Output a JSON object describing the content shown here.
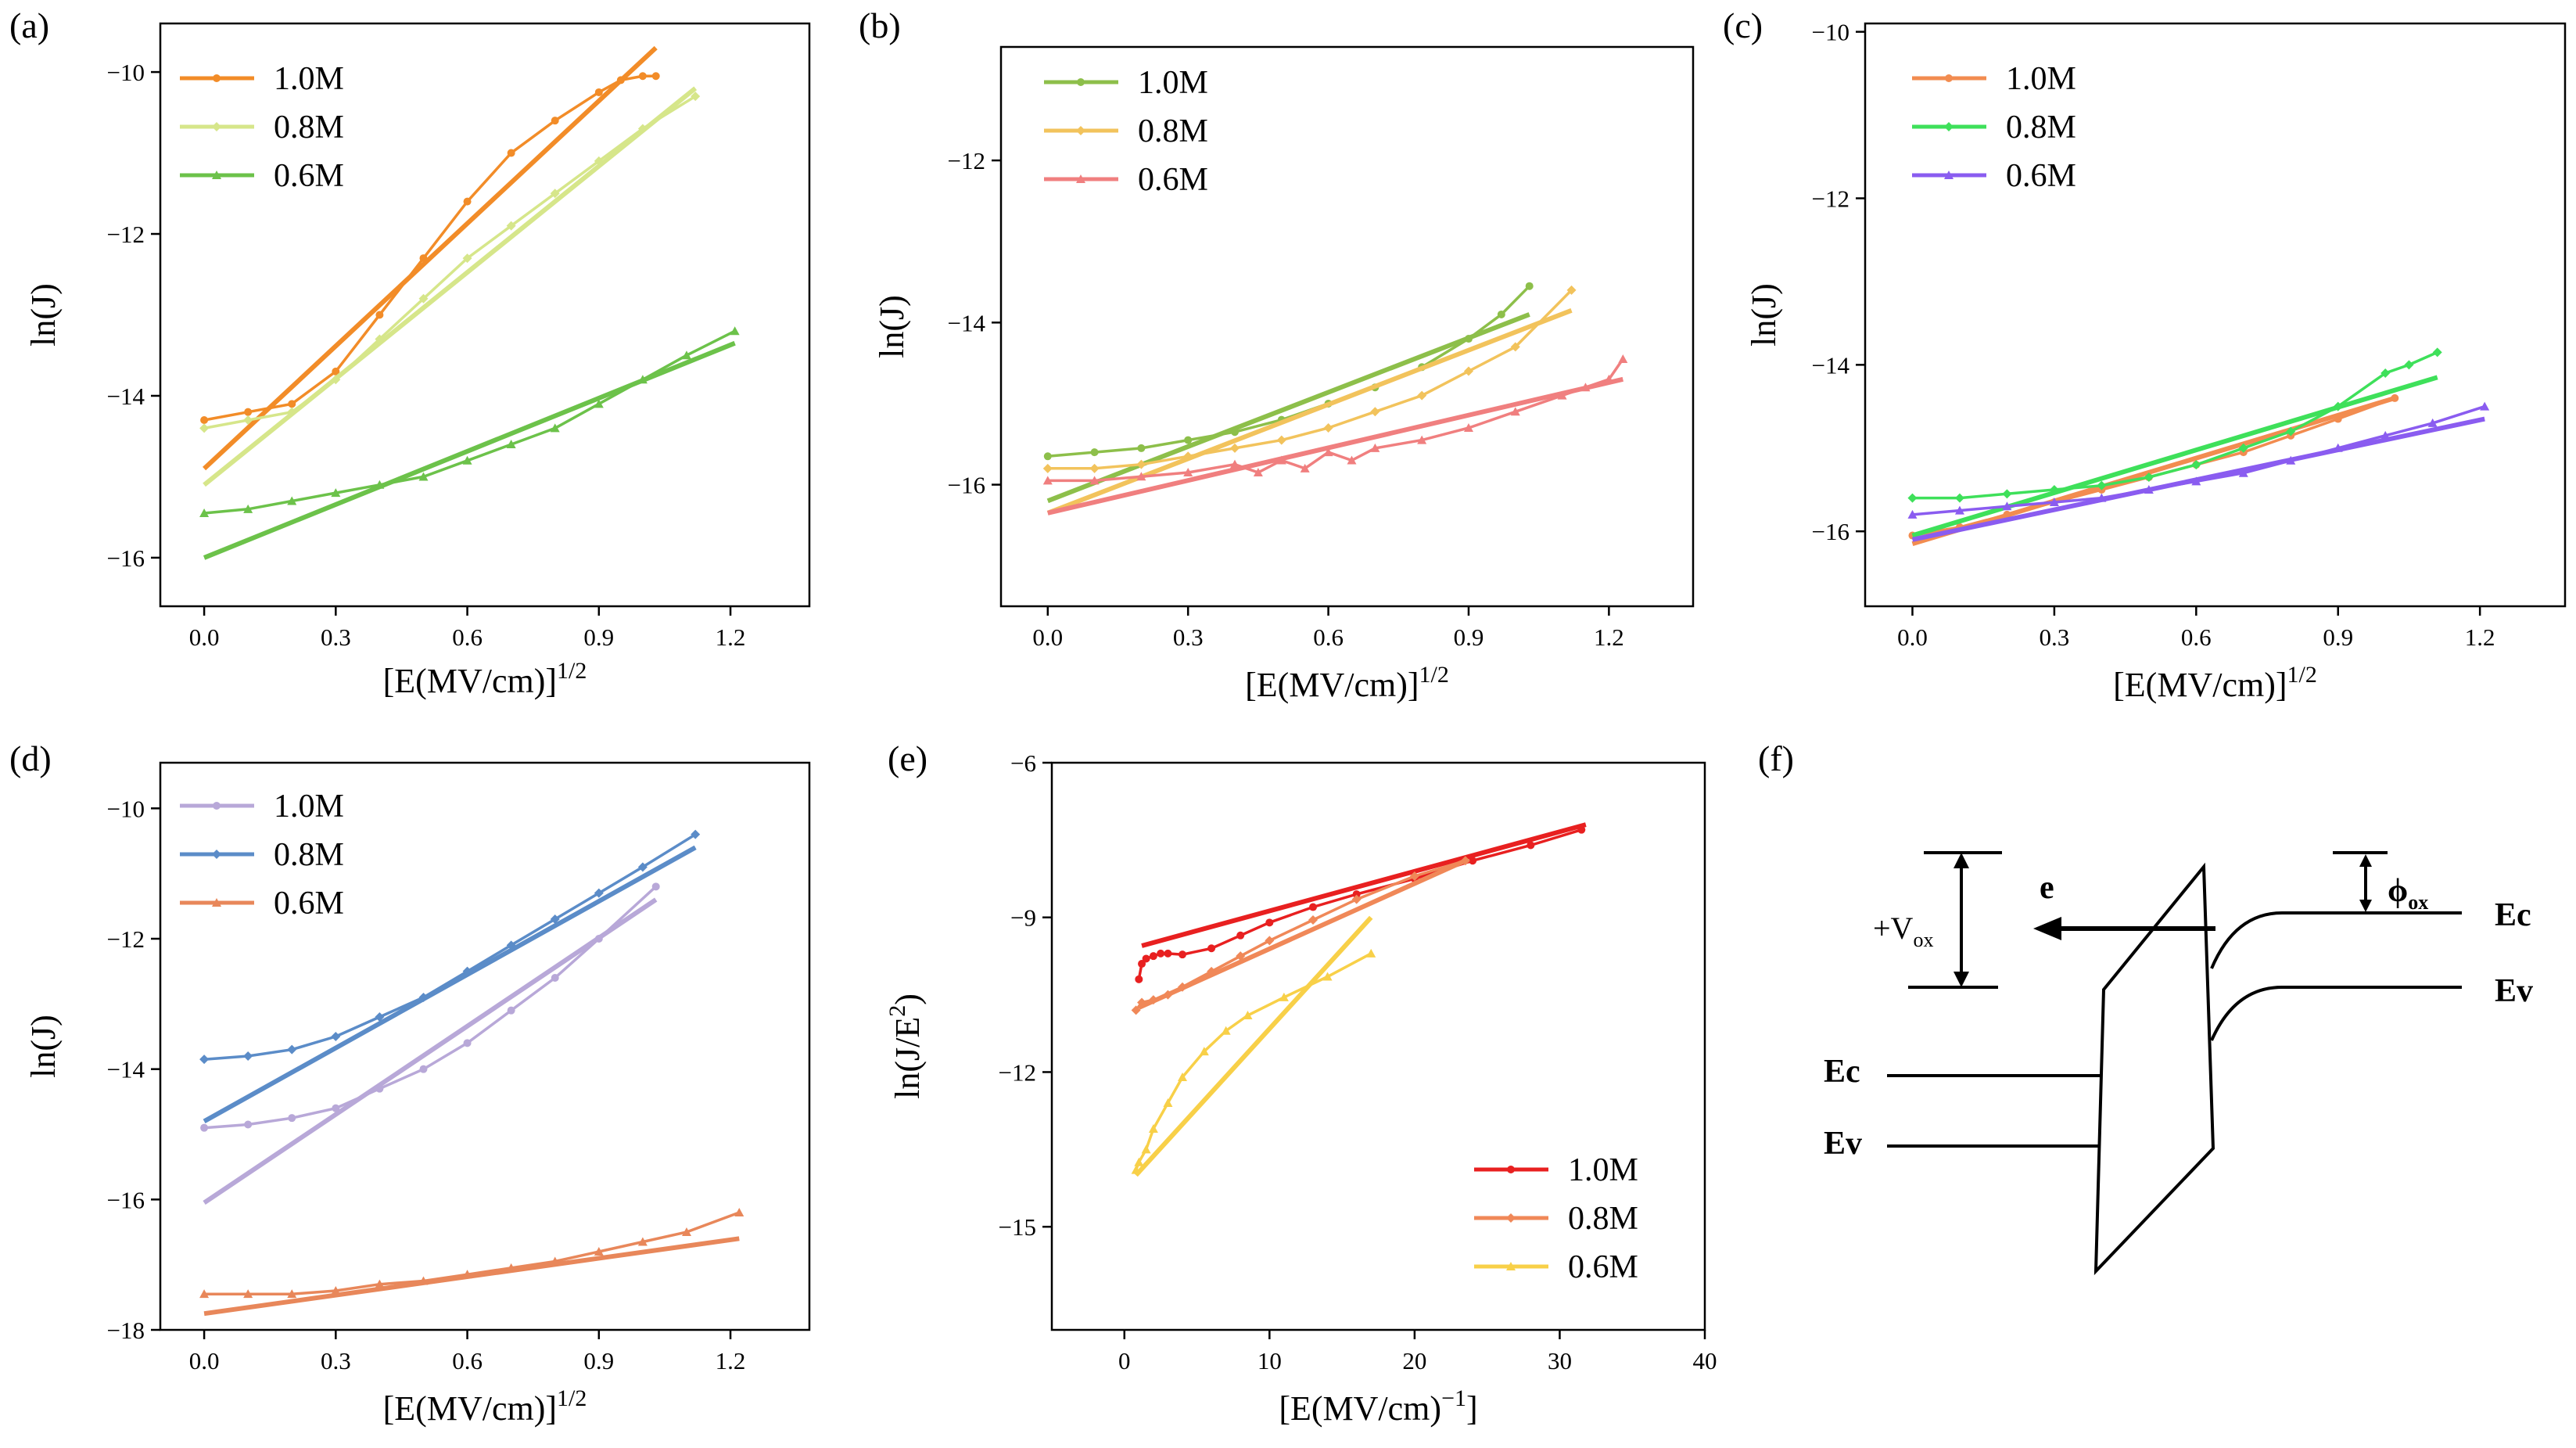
{
  "figure": {
    "panels": [
      "(a)",
      "(b)",
      "(c)",
      "(d)",
      "(e)",
      "(f)"
    ]
  },
  "chart_data": [
    {
      "panel": "(a)",
      "type": "line",
      "xlabel": "[E(MV/cm)]",
      "xlabel_sup": "1/2",
      "ylabel": "ln(J)",
      "xlim": [
        -0.1,
        1.38
      ],
      "ylim": [
        -16.6,
        -9.4
      ],
      "xticks": [
        "0.0",
        "0.3",
        "0.6",
        "0.9",
        "1.2"
      ],
      "xtick_values": [
        0,
        0.3,
        0.6,
        0.9,
        1.2
      ],
      "yticks": [
        "-16",
        "-14",
        "-12",
        "-10"
      ],
      "ytick_values": [
        -16,
        -14,
        -12,
        -10
      ],
      "series": [
        {
          "name": "1.0M",
          "color": "#F28C28",
          "marker": "circle",
          "x": [
            0,
            0.1,
            0.2,
            0.3,
            0.4,
            0.5,
            0.6,
            0.7,
            0.8,
            0.9,
            0.95,
            1.0,
            1.03
          ],
          "y": [
            -14.3,
            -14.2,
            -14.1,
            -13.7,
            -13.0,
            -12.3,
            -11.6,
            -11.0,
            -10.6,
            -10.25,
            -10.1,
            -10.05,
            -10.05
          ],
          "fit": [
            [
              0,
              -14.9
            ],
            [
              1.03,
              -9.7
            ]
          ]
        },
        {
          "name": "0.8M",
          "color": "#D6E68A",
          "marker": "diamond",
          "x": [
            0,
            0.1,
            0.2,
            0.3,
            0.4,
            0.5,
            0.6,
            0.7,
            0.8,
            0.9,
            1.0,
            1.12
          ],
          "y": [
            -14.4,
            -14.3,
            -14.2,
            -13.8,
            -13.3,
            -12.8,
            -12.3,
            -11.9,
            -11.5,
            -11.1,
            -10.7,
            -10.3
          ],
          "fit": [
            [
              0,
              -15.1
            ],
            [
              1.12,
              -10.2
            ]
          ]
        },
        {
          "name": "0.6M",
          "color": "#6CC24A",
          "marker": "triangle",
          "x": [
            0,
            0.1,
            0.2,
            0.3,
            0.4,
            0.5,
            0.6,
            0.7,
            0.8,
            0.9,
            1.0,
            1.1,
            1.21
          ],
          "y": [
            -15.45,
            -15.4,
            -15.3,
            -15.2,
            -15.1,
            -15.0,
            -14.8,
            -14.6,
            -14.4,
            -14.1,
            -13.8,
            -13.5,
            -13.2
          ],
          "fit": [
            [
              0,
              -16.0
            ],
            [
              1.21,
              -13.35
            ]
          ]
        }
      ]
    },
    {
      "panel": "(b)",
      "type": "line",
      "xlabel": "[E(MV/cm)]",
      "xlabel_sup": "1/2",
      "ylabel": "ln(J)",
      "xlim": [
        -0.1,
        1.38
      ],
      "ylim": [
        -17.5,
        -10.6
      ],
      "xticks": [
        "0.0",
        "0.3",
        "0.6",
        "0.9",
        "1.2"
      ],
      "xtick_values": [
        0,
        0.3,
        0.6,
        0.9,
        1.2
      ],
      "yticks": [
        "-16",
        "-14",
        "-12"
      ],
      "ytick_values": [
        -16,
        -14,
        -12
      ],
      "series": [
        {
          "name": "1.0M",
          "color": "#8DBF4A",
          "marker": "circle",
          "x": [
            0,
            0.1,
            0.2,
            0.3,
            0.4,
            0.5,
            0.6,
            0.7,
            0.8,
            0.9,
            0.97,
            1.03
          ],
          "y": [
            -15.65,
            -15.6,
            -15.55,
            -15.45,
            -15.35,
            -15.2,
            -15.0,
            -14.8,
            -14.55,
            -14.2,
            -13.9,
            -13.55
          ],
          "fit": [
            [
              0,
              -16.2
            ],
            [
              1.03,
              -13.9
            ]
          ]
        },
        {
          "name": "0.8M",
          "color": "#F2C35C",
          "marker": "diamond",
          "x": [
            0,
            0.1,
            0.2,
            0.3,
            0.4,
            0.5,
            0.6,
            0.7,
            0.8,
            0.9,
            1.0,
            1.12
          ],
          "y": [
            -15.8,
            -15.8,
            -15.75,
            -15.65,
            -15.55,
            -15.45,
            -15.3,
            -15.1,
            -14.9,
            -14.6,
            -14.3,
            -13.6
          ],
          "fit": [
            [
              0,
              -16.35
            ],
            [
              1.12,
              -13.85
            ]
          ]
        },
        {
          "name": "0.6M",
          "color": "#F07F7F",
          "marker": "triangle",
          "x": [
            0,
            0.1,
            0.2,
            0.3,
            0.4,
            0.45,
            0.5,
            0.55,
            0.6,
            0.65,
            0.7,
            0.8,
            0.9,
            1.0,
            1.1,
            1.15,
            1.2,
            1.23
          ],
          "y": [
            -15.95,
            -15.95,
            -15.9,
            -15.85,
            -15.75,
            -15.85,
            -15.7,
            -15.8,
            -15.6,
            -15.7,
            -15.55,
            -15.45,
            -15.3,
            -15.1,
            -14.9,
            -14.8,
            -14.7,
            -14.45
          ],
          "fit": [
            [
              0,
              -16.35
            ],
            [
              1.23,
              -14.7
            ]
          ]
        }
      ]
    },
    {
      "panel": "(c)",
      "type": "line",
      "xlabel": "[E(MV/cm)]",
      "xlabel_sup": "1/2",
      "ylabel": "ln(J)",
      "xlim": [
        -0.1,
        1.38
      ],
      "ylim": [
        -16.9,
        -9.9
      ],
      "xticks": [
        "0.0",
        "0.3",
        "0.6",
        "0.9",
        "1.2"
      ],
      "xtick_values": [
        0,
        0.3,
        0.6,
        0.9,
        1.2
      ],
      "yticks": [
        "-16",
        "-14",
        "-12",
        "-10"
      ],
      "ytick_values": [
        -16,
        -14,
        -12,
        -10
      ],
      "series": [
        {
          "name": "1.0M",
          "color": "#F28C50",
          "marker": "circle",
          "x": [
            0,
            0.1,
            0.2,
            0.3,
            0.4,
            0.5,
            0.6,
            0.7,
            0.8,
            0.9,
            1.02
          ],
          "y": [
            -16.05,
            -15.95,
            -15.8,
            -15.65,
            -15.5,
            -15.35,
            -15.2,
            -15.05,
            -14.85,
            -14.65,
            -14.4
          ],
          "fit": [
            [
              0,
              -16.15
            ],
            [
              1.02,
              -14.4
            ]
          ]
        },
        {
          "name": "0.8M",
          "color": "#3EE05A",
          "marker": "diamond",
          "x": [
            0,
            0.1,
            0.2,
            0.3,
            0.4,
            0.5,
            0.6,
            0.7,
            0.8,
            0.9,
            1.0,
            1.05,
            1.11
          ],
          "y": [
            -15.6,
            -15.6,
            -15.55,
            -15.5,
            -15.45,
            -15.35,
            -15.2,
            -15.0,
            -14.8,
            -14.5,
            -14.1,
            -14.0,
            -13.85
          ],
          "fit": [
            [
              0,
              -16.05
            ],
            [
              1.11,
              -14.15
            ]
          ]
        },
        {
          "name": "0.6M",
          "color": "#8A5CF0",
          "marker": "triangle",
          "x": [
            0,
            0.1,
            0.2,
            0.3,
            0.4,
            0.5,
            0.6,
            0.7,
            0.8,
            0.9,
            1.0,
            1.1,
            1.21
          ],
          "y": [
            -15.8,
            -15.75,
            -15.7,
            -15.65,
            -15.6,
            -15.5,
            -15.4,
            -15.3,
            -15.15,
            -15.0,
            -14.85,
            -14.7,
            -14.5
          ],
          "fit": [
            [
              0,
              -16.1
            ],
            [
              1.21,
              -14.65
            ]
          ]
        }
      ]
    },
    {
      "panel": "(d)",
      "type": "line",
      "xlabel": "[E(MV/cm)]",
      "xlabel_sup": "1/2",
      "ylabel": "ln(J)",
      "xlim": [
        -0.1,
        1.38
      ],
      "ylim": [
        -18,
        -9.3
      ],
      "xticks": [
        "0.0",
        "0.3",
        "0.6",
        "0.9",
        "1.2"
      ],
      "xtick_values": [
        0,
        0.3,
        0.6,
        0.9,
        1.2
      ],
      "yticks": [
        "-18",
        "-16",
        "-14",
        "-12",
        "-10"
      ],
      "ytick_values": [
        -18,
        -16,
        -14,
        -12,
        -10
      ],
      "series": [
        {
          "name": "1.0M",
          "color": "#B8A8D8",
          "marker": "circle",
          "x": [
            0,
            0.1,
            0.2,
            0.3,
            0.4,
            0.5,
            0.6,
            0.7,
            0.8,
            0.9,
            1.03
          ],
          "y": [
            -14.9,
            -14.85,
            -14.75,
            -14.6,
            -14.3,
            -14.0,
            -13.6,
            -13.1,
            -12.6,
            -12.0,
            -11.2
          ],
          "fit": [
            [
              0,
              -16.05
            ],
            [
              1.03,
              -11.4
            ]
          ]
        },
        {
          "name": "0.8M",
          "color": "#5B8CC8",
          "marker": "diamond",
          "x": [
            0,
            0.1,
            0.2,
            0.3,
            0.4,
            0.5,
            0.6,
            0.7,
            0.8,
            0.9,
            1.0,
            1.12
          ],
          "y": [
            -13.85,
            -13.8,
            -13.7,
            -13.5,
            -13.2,
            -12.9,
            -12.5,
            -12.1,
            -11.7,
            -11.3,
            -10.9,
            -10.4
          ],
          "fit": [
            [
              0,
              -14.8
            ],
            [
              1.12,
              -10.6
            ]
          ]
        },
        {
          "name": "0.6M",
          "color": "#E8875A",
          "marker": "triangle",
          "x": [
            0,
            0.1,
            0.2,
            0.3,
            0.4,
            0.5,
            0.6,
            0.7,
            0.8,
            0.9,
            1.0,
            1.1,
            1.22
          ],
          "y": [
            -17.45,
            -17.45,
            -17.45,
            -17.4,
            -17.3,
            -17.25,
            -17.15,
            -17.05,
            -16.95,
            -16.8,
            -16.65,
            -16.5,
            -16.2
          ],
          "fit": [
            [
              0,
              -17.75
            ],
            [
              1.22,
              -16.6
            ]
          ]
        }
      ]
    },
    {
      "panel": "(e)",
      "type": "line",
      "xlabel": "[E(MV/cm)",
      "xlabel_sup": "−1",
      "xlabel_suffix": "]",
      "ylabel": "ln(J/E",
      "ylabel_sup": "2",
      "ylabel_suffix": ")",
      "xlim": [
        -5,
        40
      ],
      "ylim": [
        -17,
        -6
      ],
      "xticks": [
        "0",
        "10",
        "20",
        "30",
        "40"
      ],
      "xtick_values": [
        0,
        10,
        20,
        30,
        40
      ],
      "yticks": [
        "-15",
        "-12",
        "-9",
        "-6"
      ],
      "ytick_values": [
        -15,
        -12,
        -9,
        -6
      ],
      "series": [
        {
          "name": "1.0M",
          "color": "#E82020",
          "marker": "circle",
          "x": [
            1,
            1.2,
            1.5,
            2,
            2.5,
            3,
            4,
            6,
            8,
            10,
            13,
            16,
            20,
            24,
            28,
            31.5
          ],
          "y": [
            -10.2,
            -9.9,
            -9.8,
            -9.75,
            -9.7,
            -9.7,
            -9.72,
            -9.6,
            -9.35,
            -9.1,
            -8.8,
            -8.55,
            -8.25,
            -7.9,
            -7.6,
            -7.3
          ],
          "fit": [
            [
              1.2,
              -9.55
            ],
            [
              31.8,
              -7.2
            ]
          ]
        },
        {
          "name": "0.8M",
          "color": "#F08858",
          "marker": "diamond",
          "x": [
            0.8,
            1.2,
            2,
            3,
            4,
            6,
            8,
            10,
            13,
            16,
            20,
            23.5
          ],
          "y": [
            -10.8,
            -10.65,
            -10.6,
            -10.5,
            -10.35,
            -10.05,
            -9.75,
            -9.45,
            -9.05,
            -8.65,
            -8.2,
            -7.9
          ],
          "fit": [
            [
              1.0,
              -10.75
            ],
            [
              23.5,
              -7.9
            ]
          ]
        },
        {
          "name": "0.6M",
          "color": "#F8D048",
          "marker": "triangle",
          "x": [
            0.8,
            1,
            1.5,
            2,
            3,
            4,
            5.5,
            7,
            8.5,
            11,
            14,
            17
          ],
          "y": [
            -13.9,
            -13.75,
            -13.5,
            -13.1,
            -12.6,
            -12.1,
            -11.6,
            -11.2,
            -10.9,
            -10.55,
            -10.15,
            -9.7
          ],
          "fit": [
            [
              0.8,
              -14.0
            ],
            [
              17,
              -9.0
            ]
          ]
        }
      ]
    }
  ],
  "diagram": {
    "panel": "(f)",
    "labels": {
      "e": "e",
      "phi": "ϕ",
      "phi_sub": "ox",
      "ec_right": "Ec",
      "ev_right": "Ev",
      "ec_left": "Ec",
      "ev_left": "Ev",
      "vox": "+V",
      "vox_sub": "ox"
    }
  }
}
